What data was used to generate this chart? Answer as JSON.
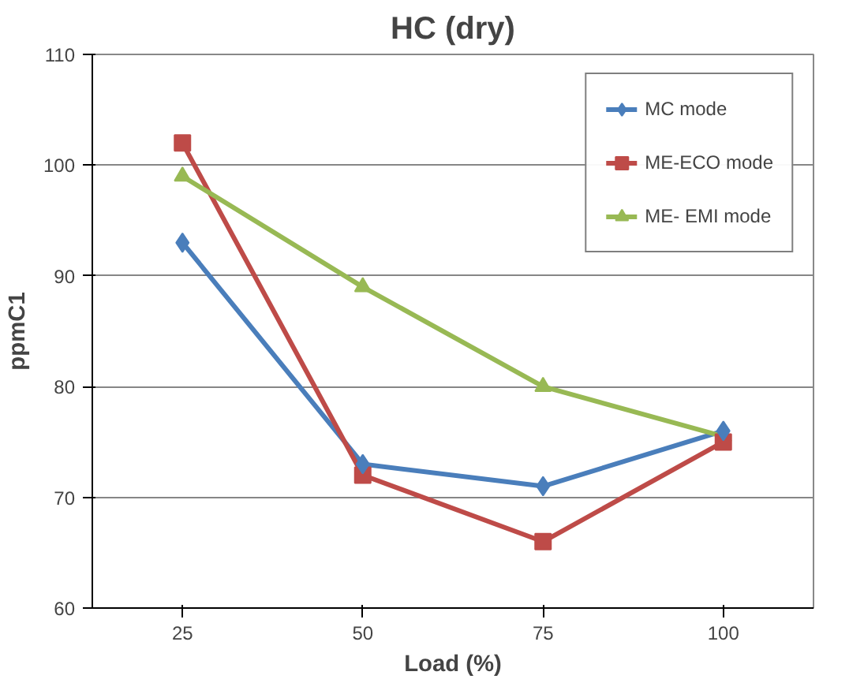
{
  "chart_data": {
    "type": "line",
    "title": "HC (dry)",
    "xlabel": "Load (%)",
    "ylabel": "ppmC1",
    "categories": [
      "25",
      "50",
      "75",
      "100"
    ],
    "series": [
      {
        "name": "MC mode",
        "color": "#4a7ebb",
        "marker": "diamond",
        "values": [
          93,
          73,
          71,
          76
        ]
      },
      {
        "name": "ME-ECO mode",
        "color": "#be4b48",
        "marker": "square",
        "values": [
          102,
          72,
          66,
          75
        ]
      },
      {
        "name": "ME- EMI mode",
        "color": "#98b954",
        "marker": "triangle",
        "values": [
          99,
          89,
          80,
          75.5
        ]
      }
    ],
    "ylim": [
      60,
      110
    ],
    "yticks": [
      60,
      70,
      80,
      90,
      100,
      110
    ],
    "grid": "y",
    "legend": "top right",
    "line_style": "solid"
  }
}
